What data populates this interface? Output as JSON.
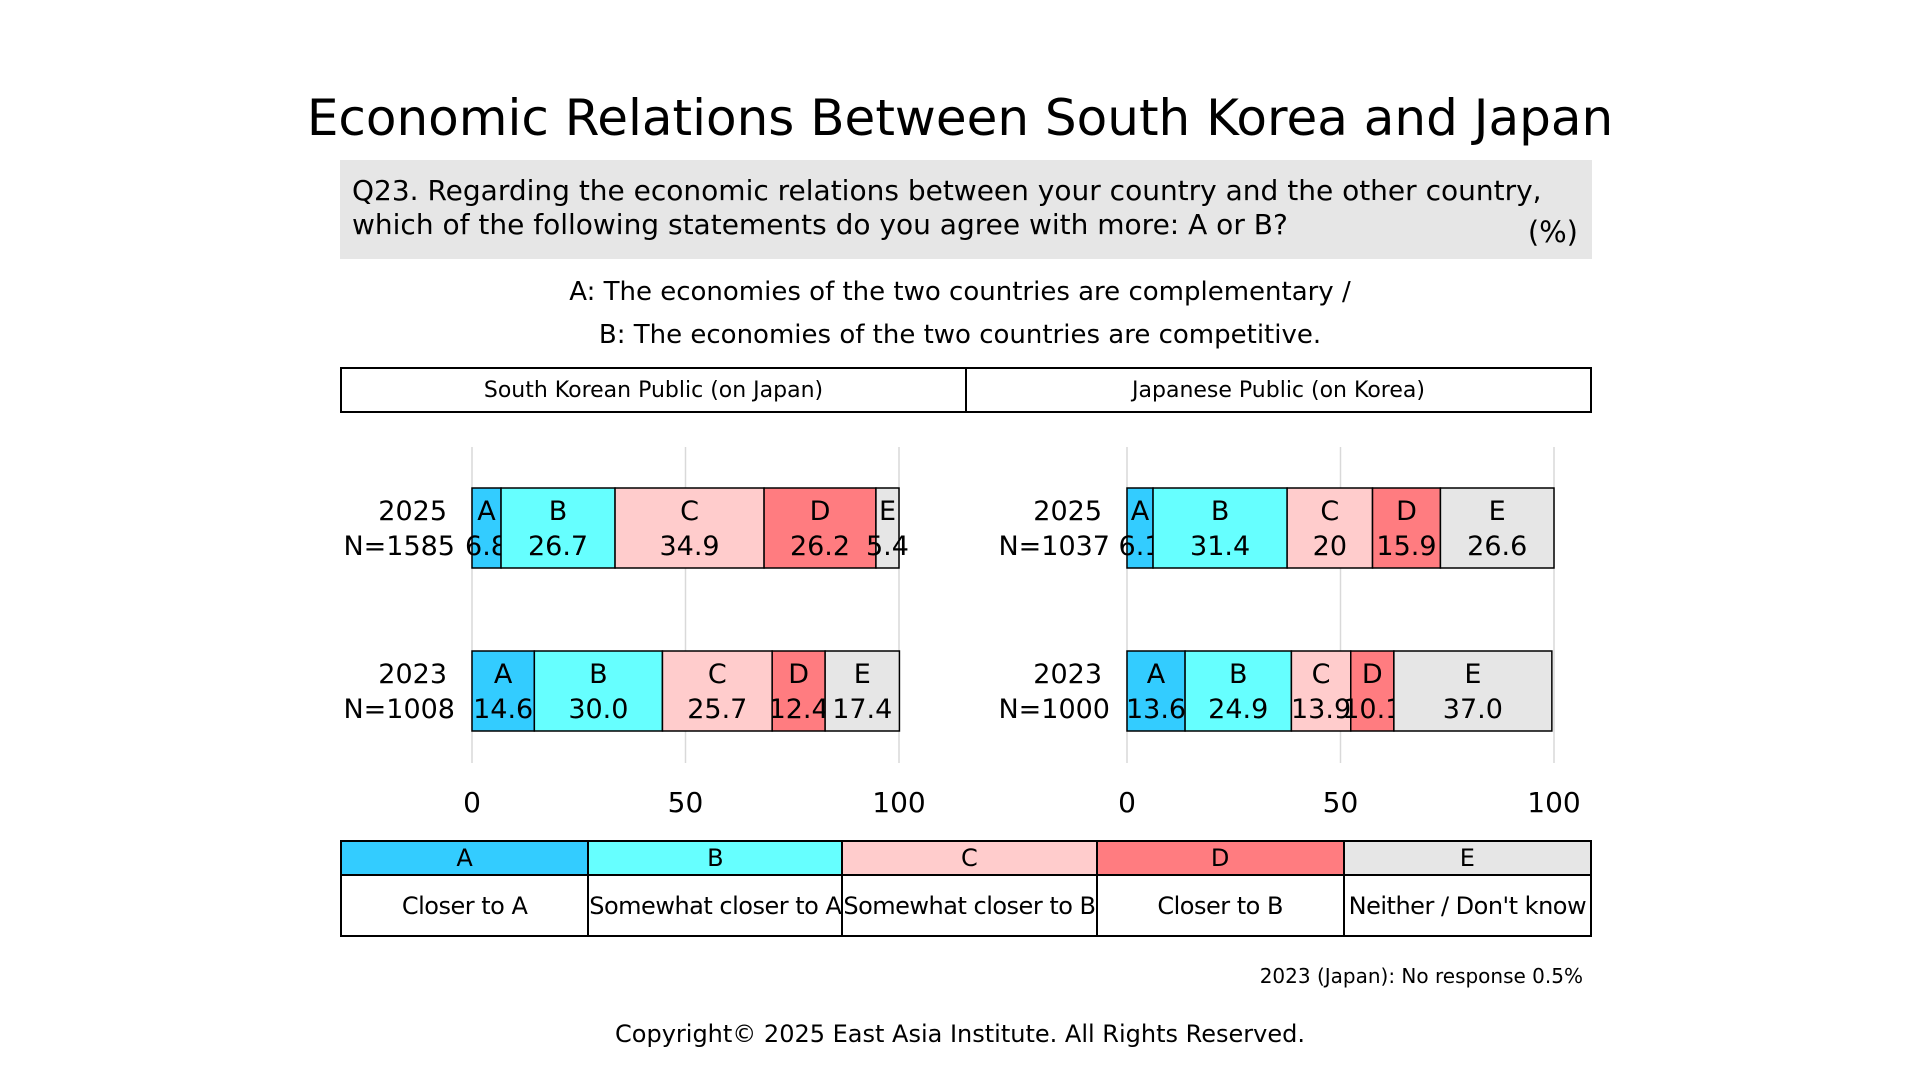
{
  "header": {
    "title": "Economic Relations Between South Korea and Japan",
    "question_line1": "Q23. Regarding the economic relations between your country and the other country,",
    "question_line2": "which of the following statements do you agree with more: A or B?",
    "unit": "(%)",
    "def_a": "A: The economies of the two countries are complementary /",
    "def_b": "B: The economies of the two countries are competitive."
  },
  "chart_data": {
    "type": "bar",
    "stacked": true,
    "orientation": "horizontal",
    "xlim": [
      0,
      100
    ],
    "xticks": [
      "0",
      "50",
      "100"
    ],
    "grid": true,
    "segments": [
      "A",
      "B",
      "C",
      "D",
      "E"
    ],
    "colors": {
      "A": "#33ccff",
      "B": "#66ffff",
      "C": "#ffcccc",
      "D": "#ff7c80",
      "E": "#e6e6e6"
    },
    "panels": [
      {
        "name": "South Korean Public (on Japan)",
        "rows": [
          {
            "year": "2025",
            "n": "N=1585",
            "values": [
              6.8,
              26.7,
              34.9,
              26.2,
              5.4
            ],
            "labels": [
              "6.8",
              "26.7",
              "34.9",
              "26.2",
              "5.4"
            ]
          },
          {
            "year": "2023",
            "n": "N=1008",
            "values": [
              14.6,
              30.0,
              25.7,
              12.4,
              17.4
            ],
            "labels": [
              "14.6",
              "30.0",
              "25.7",
              "12.4",
              "17.4"
            ]
          }
        ]
      },
      {
        "name": "Japanese Public (on Korea)",
        "rows": [
          {
            "year": "2025",
            "n": "N=1037",
            "values": [
              6.1,
              31.4,
              20,
              15.9,
              26.6
            ],
            "labels": [
              "6.1",
              "31.4",
              "20",
              "15.9",
              "26.6"
            ]
          },
          {
            "year": "2023",
            "n": "N=1000",
            "values": [
              13.6,
              24.9,
              13.9,
              10.1,
              37.0
            ],
            "labels": [
              "13.6",
              "24.9",
              "13.9",
              "10.1",
              "37.0"
            ]
          }
        ]
      }
    ]
  },
  "legend": [
    {
      "key": "A",
      "desc": "Closer to A"
    },
    {
      "key": "B",
      "desc": "Somewhat closer to A"
    },
    {
      "key": "C",
      "desc": "Somewhat closer to B"
    },
    {
      "key": "D",
      "desc": "Closer to B"
    },
    {
      "key": "E",
      "desc": "Neither / Don't know"
    }
  ],
  "footnote": "2023 (Japan): No response 0.5%",
  "copyright": "Copyright© 2025 East Asia Institute. All Rights Reserved."
}
